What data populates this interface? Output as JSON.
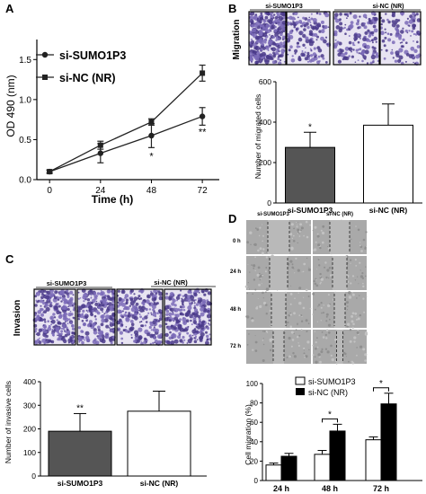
{
  "panels": {
    "A": "A",
    "B": "B",
    "C": "C",
    "D": "D"
  },
  "side_labels": {
    "migration": "Migration",
    "invasion": "Invasion"
  },
  "micro_labels": {
    "b_sumo": "si-SUMO1P3",
    "b_nc": "si-NC (NR)",
    "c_sumo": "si-SUMO1P3",
    "c_nc": "si-NC",
    "c_nc_suffix": "(NR)",
    "d_sumo": "si-SUMO1P3",
    "d_nc": "si-NC (NR)"
  },
  "d_rows": [
    "0 h",
    "24 h",
    "48 h",
    "72 h"
  ],
  "colors": {
    "sumo_bar": "#555555",
    "nc_bar": "#ffffff",
    "stain": "#5a4a9a",
    "scratch_bg": "#a9a9a9"
  },
  "chart_data": [
    {
      "id": "A",
      "type": "line",
      "xlabel": "Time (h)",
      "ylabel": "OD 490 (nm)",
      "x": [
        0,
        24,
        48,
        72
      ],
      "xticks": [
        "0",
        "24",
        "48",
        "72"
      ],
      "yticks": [
        "0.0",
        "0.5",
        "1.0",
        "1.5"
      ],
      "ylim": [
        0,
        1.75
      ],
      "xlim": [
        -6,
        80
      ],
      "legend": "top-left",
      "series": [
        {
          "name": "si-SUMO1P3",
          "marker": "circle",
          "values": [
            0.1,
            0.33,
            0.55,
            0.79
          ],
          "err": [
            0.02,
            0.12,
            0.15,
            0.11
          ]
        },
        {
          "name": "si-NC",
          "name_suffix": "(NR)",
          "marker": "square",
          "values": [
            0.1,
            0.43,
            0.72,
            1.33
          ],
          "err": [
            0.02,
            0.05,
            0.04,
            0.1
          ]
        }
      ],
      "annotations": [
        {
          "x": 48,
          "text": "*",
          "y": 0.3
        },
        {
          "x": 72,
          "text": "**",
          "y": 0.6
        }
      ]
    },
    {
      "id": "B",
      "type": "bar",
      "ylabel": "Number of migrated cells",
      "categories": [
        "si-SUMO1P3",
        "si-NC (NR)"
      ],
      "values": [
        275,
        385
      ],
      "err": [
        75,
        105
      ],
      "yticks": [
        "0",
        "200",
        "400",
        "600"
      ],
      "ylim": [
        0,
        600
      ],
      "annotations": [
        {
          "index": 0,
          "text": "*"
        }
      ]
    },
    {
      "id": "C",
      "type": "bar",
      "ylabel": "Number of invasive cells",
      "categories": [
        "si-SUMO1P3",
        "si-NC (NR)"
      ],
      "values": [
        190,
        275
      ],
      "err": [
        75,
        85
      ],
      "yticks": [
        "0",
        "100",
        "200",
        "300",
        "400"
      ],
      "ylim": [
        0,
        400
      ],
      "annotations": [
        {
          "index": 0,
          "text": "**"
        }
      ]
    },
    {
      "id": "D",
      "type": "bar",
      "ylabel": "Cell migration (%)",
      "categories": [
        "24 h",
        "48 h",
        "72 h"
      ],
      "yticks": [
        "0",
        "20",
        "40",
        "60",
        "80",
        "100"
      ],
      "ylim": [
        0,
        100
      ],
      "legend": "top-left",
      "series": [
        {
          "name": "si-SUMO1P3",
          "values": [
            16,
            27,
            42
          ],
          "err": [
            2,
            4,
            3
          ]
        },
        {
          "name": "si-NC (NR)",
          "values": [
            25,
            51,
            79
          ],
          "err": [
            3,
            7,
            11
          ]
        }
      ],
      "annotations": [
        {
          "index": 1,
          "text": "*"
        },
        {
          "index": 2,
          "text": "*"
        }
      ]
    }
  ]
}
